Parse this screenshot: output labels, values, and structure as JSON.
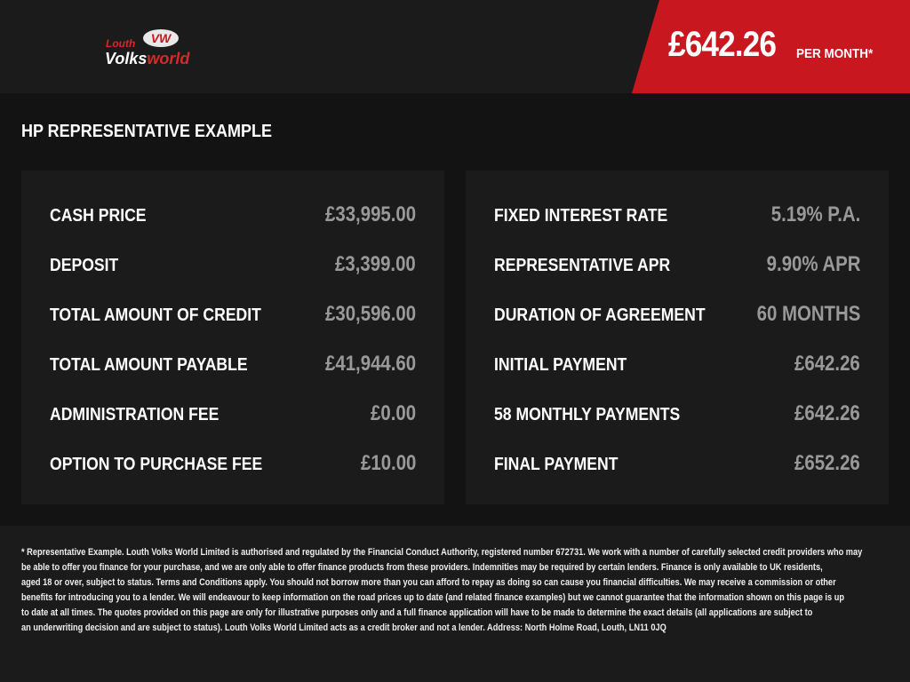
{
  "brand": {
    "logo_text_top": "Louth",
    "logo_text_main": "Volks",
    "logo_text_accent": "world",
    "logo_badge": "VW",
    "red": "#c8171e"
  },
  "header": {
    "price": "£642.26",
    "per_month": "PER MONTH*"
  },
  "title": "HP REPRESENTATIVE EXAMPLE",
  "left": [
    {
      "label": "CASH PRICE",
      "value": "£33,995.00"
    },
    {
      "label": "DEPOSIT",
      "value": "£3,399.00"
    },
    {
      "label": "TOTAL AMOUNT OF CREDIT",
      "value": "£30,596.00"
    },
    {
      "label": "TOTAL AMOUNT PAYABLE",
      "value": "£41,944.60"
    },
    {
      "label": "ADMINISTRATION FEE",
      "value": "£0.00"
    },
    {
      "label": "OPTION TO PURCHASE FEE",
      "value": "£10.00"
    }
  ],
  "right": [
    {
      "label": "FIXED INTEREST RATE",
      "value": "5.19% P.A."
    },
    {
      "label": "REPRESENTATIVE APR",
      "value": "9.90% APR"
    },
    {
      "label": "DURATION OF AGREEMENT",
      "value": "60 MONTHS"
    },
    {
      "label": "INITIAL PAYMENT",
      "value": "£642.26"
    },
    {
      "label": "58 MONTHLY PAYMENTS",
      "value": "£642.26"
    },
    {
      "label": "FINAL PAYMENT",
      "value": "£652.26"
    }
  ],
  "disclaimer": [
    "* Representative Example. Louth Volks World Limited is authorised and regulated by the Financial Conduct Authority, registered number 672731. We work with a number of carefully selected credit providers who may",
    "be able to offer you finance for your purchase, and we are only able to offer finance products from these providers. Indemnities may be required by certain lenders. Finance is only available to UK residents,",
    "aged 18 or over, subject to status. Terms and Conditions apply. You should not borrow more than you can afford to repay as doing so can cause you financial difficulties. We may receive a commission or other",
    "benefits for introducing you to a lender. We will endeavour to keep information on the road prices up to date (and related finance examples) but we cannot guarantee that the information shown on this page is up",
    "to date at all times. The quotes provided on this page are only for illustrative purposes only and a full finance application will have to be made to determine the exact details (all applications are subject to",
    "an underwriting decision and are subject to status). Louth Volks World Limited acts as a credit broker and not a lender. Address: North Holme Road, Louth, LN11 0JQ"
  ]
}
